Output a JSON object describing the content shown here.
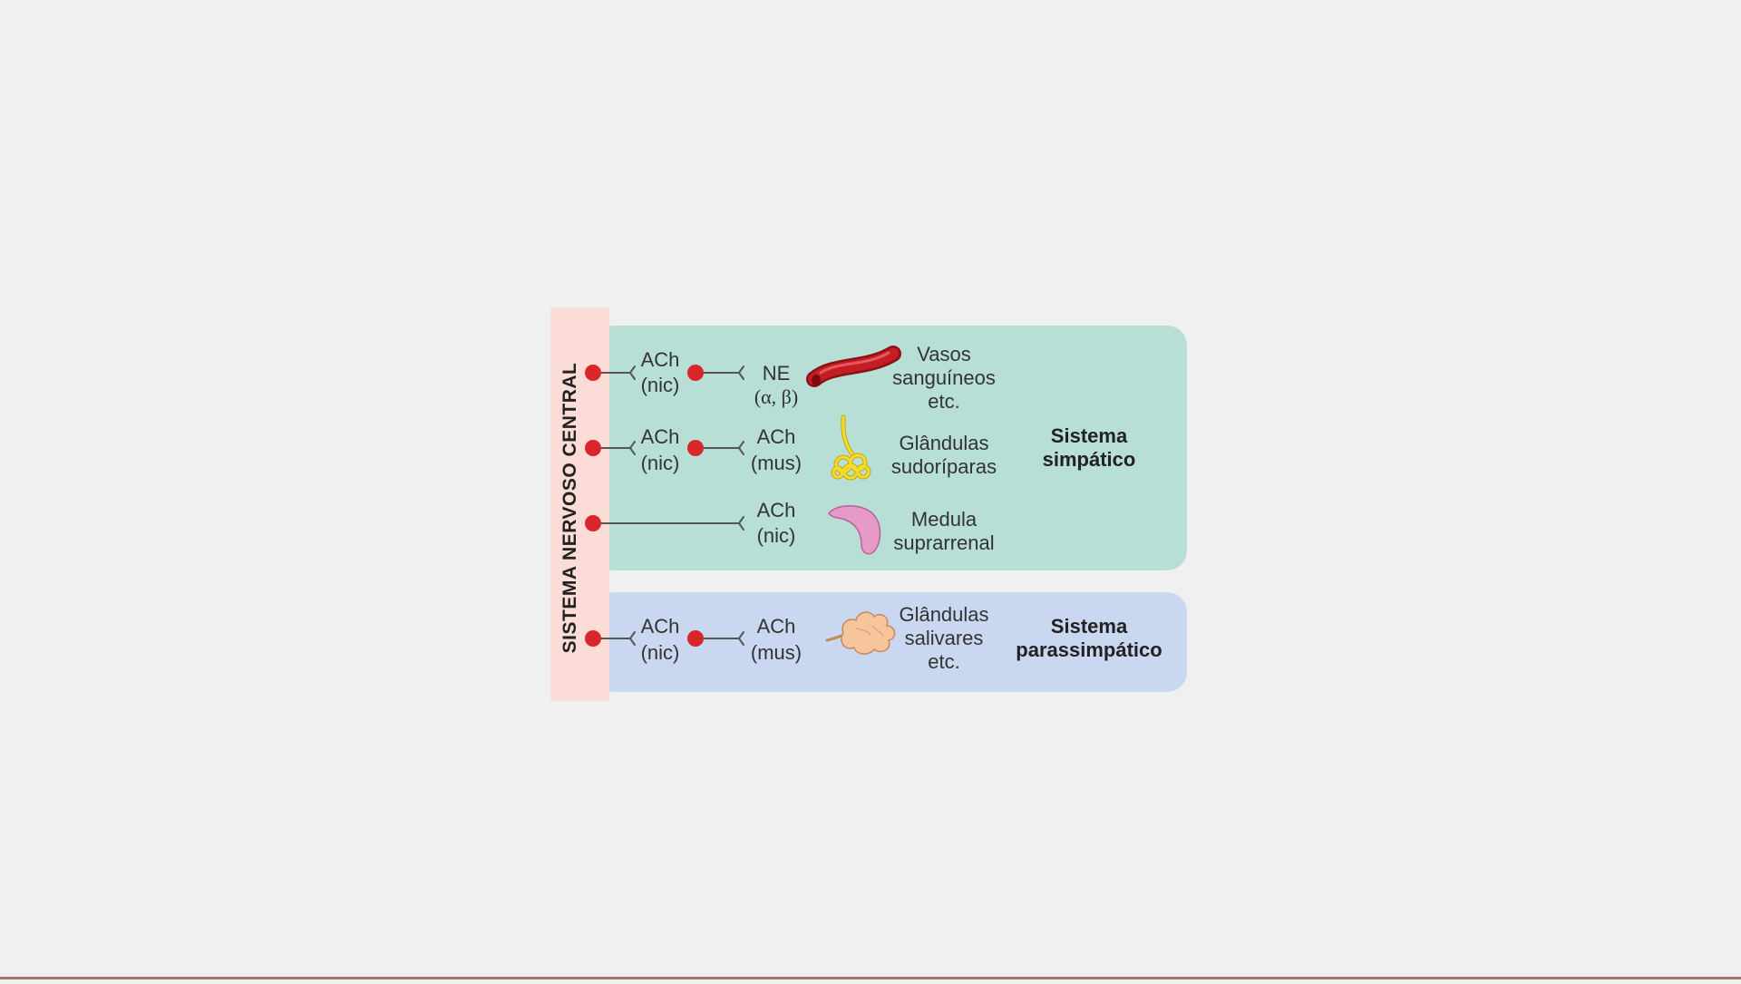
{
  "cns_label": "SISTEMA NERVOSO CENTRAL",
  "sympathetic": {
    "title_line1": "Sistema",
    "title_line2": "simpático",
    "rows": [
      {
        "pre_label": [
          "ACh",
          "(nic)"
        ],
        "post_label": [
          "NE",
          "(α, β)"
        ],
        "target": [
          "Vasos",
          "sanguíneos",
          "etc."
        ],
        "organ_icon": "blood-vessel-icon"
      },
      {
        "pre_label": [
          "ACh",
          "(nic)"
        ],
        "post_label": [
          "ACh",
          "(mus)"
        ],
        "target": [
          "Glândulas",
          "sudoríparas"
        ],
        "organ_icon": "sweat-gland-icon"
      },
      {
        "pre_label": [],
        "post_label": [
          "ACh",
          "(nic)"
        ],
        "target": [
          "Medula",
          "suprarrenal"
        ],
        "organ_icon": "adrenal-medulla-icon"
      }
    ]
  },
  "parasympathetic": {
    "title_line1": "Sistema",
    "title_line2": "parassimpático",
    "rows": [
      {
        "pre_label": [
          "ACh",
          "(nic)"
        ],
        "post_label": [
          "ACh",
          "(mus)"
        ],
        "target": [
          "Glândulas",
          "salivares",
          "etc."
        ],
        "organ_icon": "salivary-gland-icon"
      }
    ]
  },
  "colors": {
    "background": "#f0f0f0",
    "cns_bar": "#fcdcd6",
    "sympathetic_panel": "#b8dfd5",
    "parasympathetic_panel": "#c9d7f1",
    "neuron_body": "#d9262c",
    "vessel": "#c41d23",
    "sweat_gland": "#f2dc33",
    "adrenal": "#e79ac5",
    "salivary": "#f7c59c"
  }
}
